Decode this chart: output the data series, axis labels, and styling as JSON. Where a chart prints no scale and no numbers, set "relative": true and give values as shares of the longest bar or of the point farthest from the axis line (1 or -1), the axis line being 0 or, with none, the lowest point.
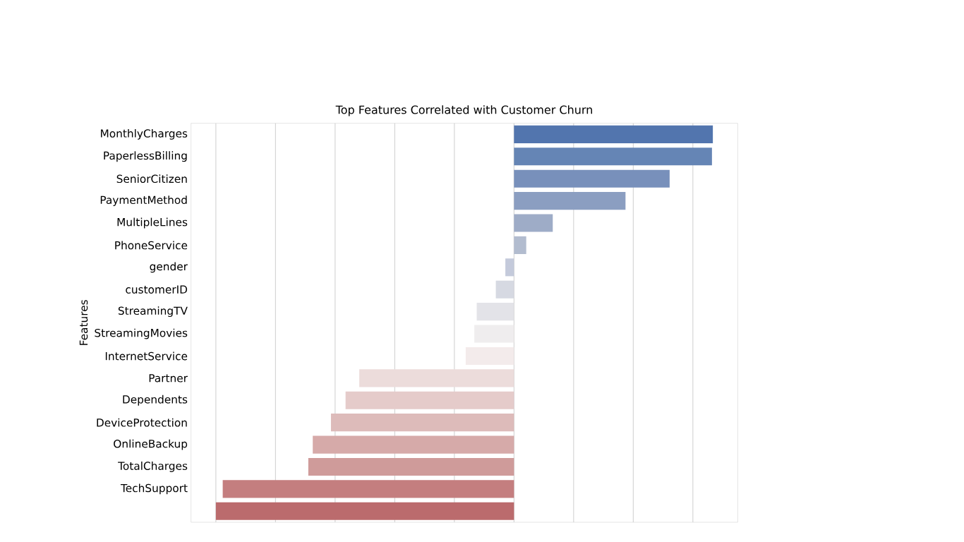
{
  "chart_data": {
    "type": "bar",
    "orientation": "horizontal",
    "relative": true,
    "title": "Top Features Correlated with Customer Churn",
    "ylabel": "Features",
    "categories": [
      "MonthlyCharges",
      "PaperlessBilling",
      "SeniorCitizen",
      "PaymentMethod",
      "MultipleLines",
      "PhoneService",
      "gender",
      "customerID",
      "StreamingTV",
      "StreamingMovies",
      "InternetService",
      "Partner",
      "Dependents",
      "DeviceProtection",
      "OnlineBackup",
      "TotalCharges",
      "TechSupport",
      null
    ],
    "values": [
      0.667,
      0.664,
      0.522,
      0.374,
      0.13,
      0.041,
      -0.029,
      -0.061,
      -0.125,
      -0.133,
      -0.162,
      -0.519,
      -0.565,
      -0.614,
      -0.675,
      -0.69,
      -0.977,
      -1
    ],
    "colors": [
      "#5275ae",
      "#6585b5",
      "#7890bb",
      "#8b9ec1",
      "#9eacc7",
      "#b2bccf",
      "#c4cadb",
      "#d6d9e2",
      "#e3e3e8",
      "#efedee",
      "#f3ebeb",
      "#ecdcdb",
      "#e5cbca",
      "#ddbbba",
      "#d6aaa9",
      "#cf9b9a",
      "#c47e7f",
      "#bb6b6d"
    ],
    "grid": "x"
  }
}
